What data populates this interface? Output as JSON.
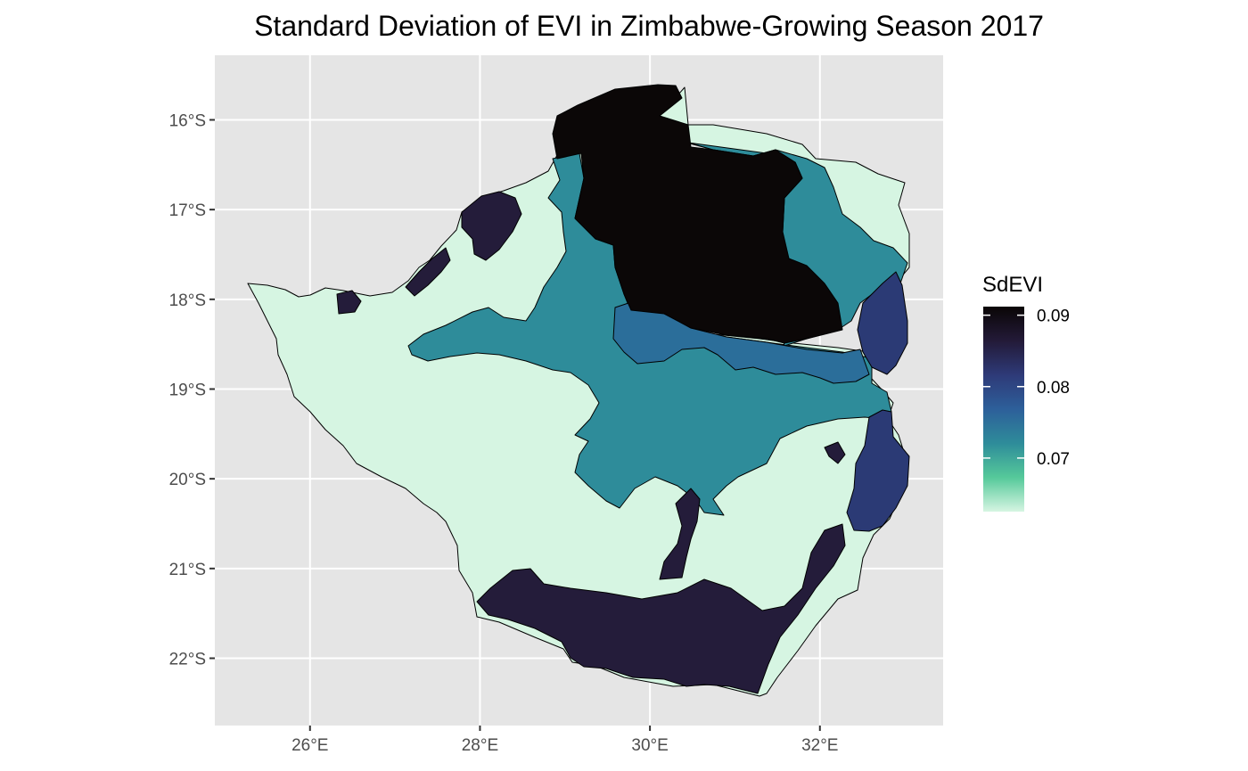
{
  "map": {
    "title": "Standard Deviation of EVI in Zimbabwe-Growing Season 2017",
    "panel_background": "#e5e5e5",
    "grid_color": "#ffffff",
    "x_ticks": [
      {
        "value": 26,
        "label": "26°E"
      },
      {
        "value": 28,
        "label": "28°E"
      },
      {
        "value": 30,
        "label": "30°E"
      },
      {
        "value": 32,
        "label": "32°E"
      }
    ],
    "y_ticks": [
      {
        "value": -16,
        "label": "16°S"
      },
      {
        "value": -17,
        "label": "17°S"
      },
      {
        "value": -18,
        "label": "18°S"
      },
      {
        "value": -19,
        "label": "19°S"
      },
      {
        "value": -20,
        "label": "20°S"
      },
      {
        "value": -21,
        "label": "21°S"
      },
      {
        "value": -22,
        "label": "22°S"
      }
    ],
    "x_range": [
      24.88,
      33.45
    ],
    "y_range": [
      -22.75,
      -15.28
    ]
  },
  "legend": {
    "title": "SdEVI",
    "breaks": [
      {
        "value": 0.09,
        "label": "0.09"
      },
      {
        "value": 0.08,
        "label": "0.08"
      },
      {
        "value": 0.07,
        "label": "0.07"
      }
    ],
    "range": [
      0.0625,
      0.0912
    ],
    "colors": [
      "#d6f5e2",
      "#55c99a",
      "#2e8c9a",
      "#2d5f9a",
      "#2e3a78",
      "#231a38",
      "#0a0606"
    ]
  },
  "colors": {
    "very_low": "#d6f5e2",
    "medium": "#2e8c9a",
    "medium_blue": "#2b6e9a",
    "high": "#2b3a75",
    "very_high": "#241c3a",
    "max": "#0b0707"
  }
}
